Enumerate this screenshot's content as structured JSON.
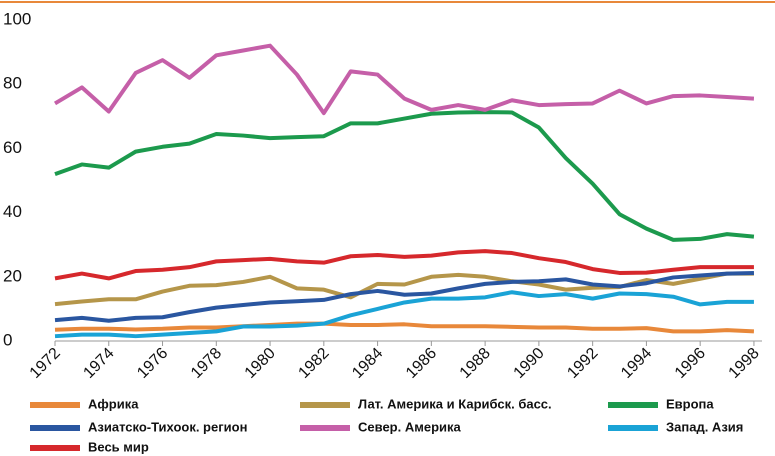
{
  "chart_data": {
    "type": "line",
    "x": [
      1972,
      1973,
      1974,
      1975,
      1976,
      1977,
      1978,
      1979,
      1980,
      1981,
      1982,
      1983,
      1984,
      1985,
      1986,
      1987,
      1988,
      1989,
      1990,
      1991,
      1992,
      1993,
      1994,
      1995,
      1996,
      1997,
      1998
    ],
    "xlim": [
      1972,
      1998.3
    ],
    "xticks": [
      1972,
      1974,
      1976,
      1978,
      1980,
      1982,
      1984,
      1986,
      1988,
      1990,
      1992,
      1994,
      1996,
      1998
    ],
    "ylim": [
      0,
      100
    ],
    "yticks": [
      0,
      20,
      40,
      60,
      80,
      100
    ],
    "grid": false,
    "legend": "bottom",
    "series": [
      {
        "name": "Африка",
        "color": "#e8883a",
        "values": [
          3.5,
          3.8,
          3.8,
          3.6,
          3.8,
          4.2,
          4.2,
          4.6,
          5,
          5.4,
          5.4,
          5,
          5,
          5.2,
          4.6,
          4.6,
          4.6,
          4.4,
          4.2,
          4.2,
          3.8,
          3.8,
          4,
          3,
          3,
          3.4,
          3
        ]
      },
      {
        "name": "Лат. Америка и Карибск. басс.",
        "color": "#b5964a",
        "values": [
          11.5,
          12.3,
          13,
          13,
          15.4,
          17.2,
          17.4,
          18.4,
          20,
          16.4,
          16,
          13.6,
          17.8,
          17.6,
          20,
          20.6,
          20,
          18.6,
          17.6,
          16,
          16.6,
          16.8,
          19,
          17.8,
          19.4,
          21,
          21
        ]
      },
      {
        "name": "Европа",
        "color": "#1c9a4d",
        "values": [
          52,
          55,
          54,
          59,
          60.5,
          61.5,
          64.5,
          64,
          63.2,
          63.5,
          63.8,
          67.8,
          67.8,
          69.3,
          70.8,
          71.2,
          71.3,
          71.2,
          66.5,
          57,
          49,
          39.5,
          35,
          31.5,
          31.8,
          33.3,
          32.5
        ]
      },
      {
        "name": "Азиатско-Тихоок. регион",
        "color": "#2a56a0",
        "values": [
          6.5,
          7.2,
          6.3,
          7.2,
          7.4,
          9,
          10.4,
          11.2,
          12,
          12.4,
          12.8,
          14.6,
          15.6,
          14.4,
          14.8,
          16.4,
          17.8,
          18.4,
          18.6,
          19.2,
          17.6,
          17,
          18,
          19.8,
          20.4,
          21,
          21.2
        ]
      },
      {
        "name": "Север. Америка",
        "color": "#c55fa8",
        "values": [
          74,
          79,
          71.5,
          83.5,
          87.5,
          82,
          89,
          90.5,
          92,
          83,
          71,
          84,
          83,
          75.5,
          72,
          73.5,
          72,
          75,
          73.5,
          73.8,
          74,
          78,
          74,
          76.3,
          76.5,
          76,
          75.5
        ]
      },
      {
        "name": "Запад. Азия",
        "color": "#1aa3d6",
        "values": [
          1.5,
          2,
          2,
          1.5,
          2,
          2.5,
          3,
          4.5,
          4.5,
          4.8,
          5.4,
          8,
          10,
          12,
          13.2,
          13.2,
          13.6,
          15.2,
          14,
          14.6,
          13.2,
          14.8,
          14.6,
          13.8,
          11.4,
          12.2,
          12.2
        ]
      },
      {
        "name": "Весь мир",
        "color": "#d6282c",
        "values": [
          19.5,
          21,
          19.5,
          21.8,
          22.2,
          23,
          24.8,
          25.2,
          25.6,
          24.8,
          24.4,
          26.4,
          26.8,
          26.2,
          26.6,
          27.6,
          28,
          27.4,
          25.8,
          24.6,
          22.4,
          21.2,
          21.3,
          22.2,
          23,
          23,
          23
        ]
      }
    ]
  }
}
